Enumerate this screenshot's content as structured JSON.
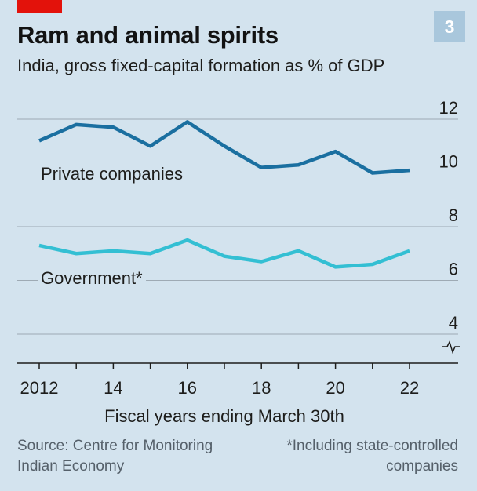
{
  "header": {
    "badge": "3",
    "title": "Ram and animal spirits",
    "subtitle": "India, gross fixed-capital formation as % of GDP"
  },
  "colors": {
    "background": "#d3e3ee",
    "accent_red": "#e3120b",
    "badge_bg": "#a9c7dc",
    "private_line": "#1a6fa0",
    "government_line": "#33bfd3",
    "grid": "#9eaab4"
  },
  "chart_data": {
    "type": "line",
    "x": [
      2012,
      2013,
      2014,
      2015,
      2016,
      2017,
      2018,
      2019,
      2020,
      2021,
      2022
    ],
    "series": [
      {
        "name": "Private companies",
        "values": [
          11.2,
          11.8,
          11.7,
          11.0,
          11.9,
          11.0,
          10.2,
          10.3,
          10.8,
          10.0,
          10.1
        ]
      },
      {
        "name": "Government*",
        "values": [
          7.3,
          7.0,
          7.1,
          7.0,
          7.5,
          6.9,
          6.7,
          7.1,
          6.5,
          6.6,
          7.1
        ]
      }
    ],
    "y_ticks": [
      "12",
      "10",
      "8",
      "6",
      "4"
    ],
    "y_tick_values": [
      12,
      10,
      8,
      6,
      4
    ],
    "x_tick_labels": [
      "2012",
      "14",
      "16",
      "18",
      "20",
      "22"
    ],
    "x_tick_values": [
      2012,
      2014,
      2016,
      2018,
      2020,
      2022
    ],
    "xlabel": "Fiscal years ending March 30th",
    "ylim": [
      3,
      13
    ],
    "xlim": [
      2012,
      2022
    ],
    "broken_axis": true,
    "grid": true
  },
  "footer": {
    "source": "Source: Centre for Monitoring Indian Economy",
    "note": "*Including state-controlled companies"
  }
}
